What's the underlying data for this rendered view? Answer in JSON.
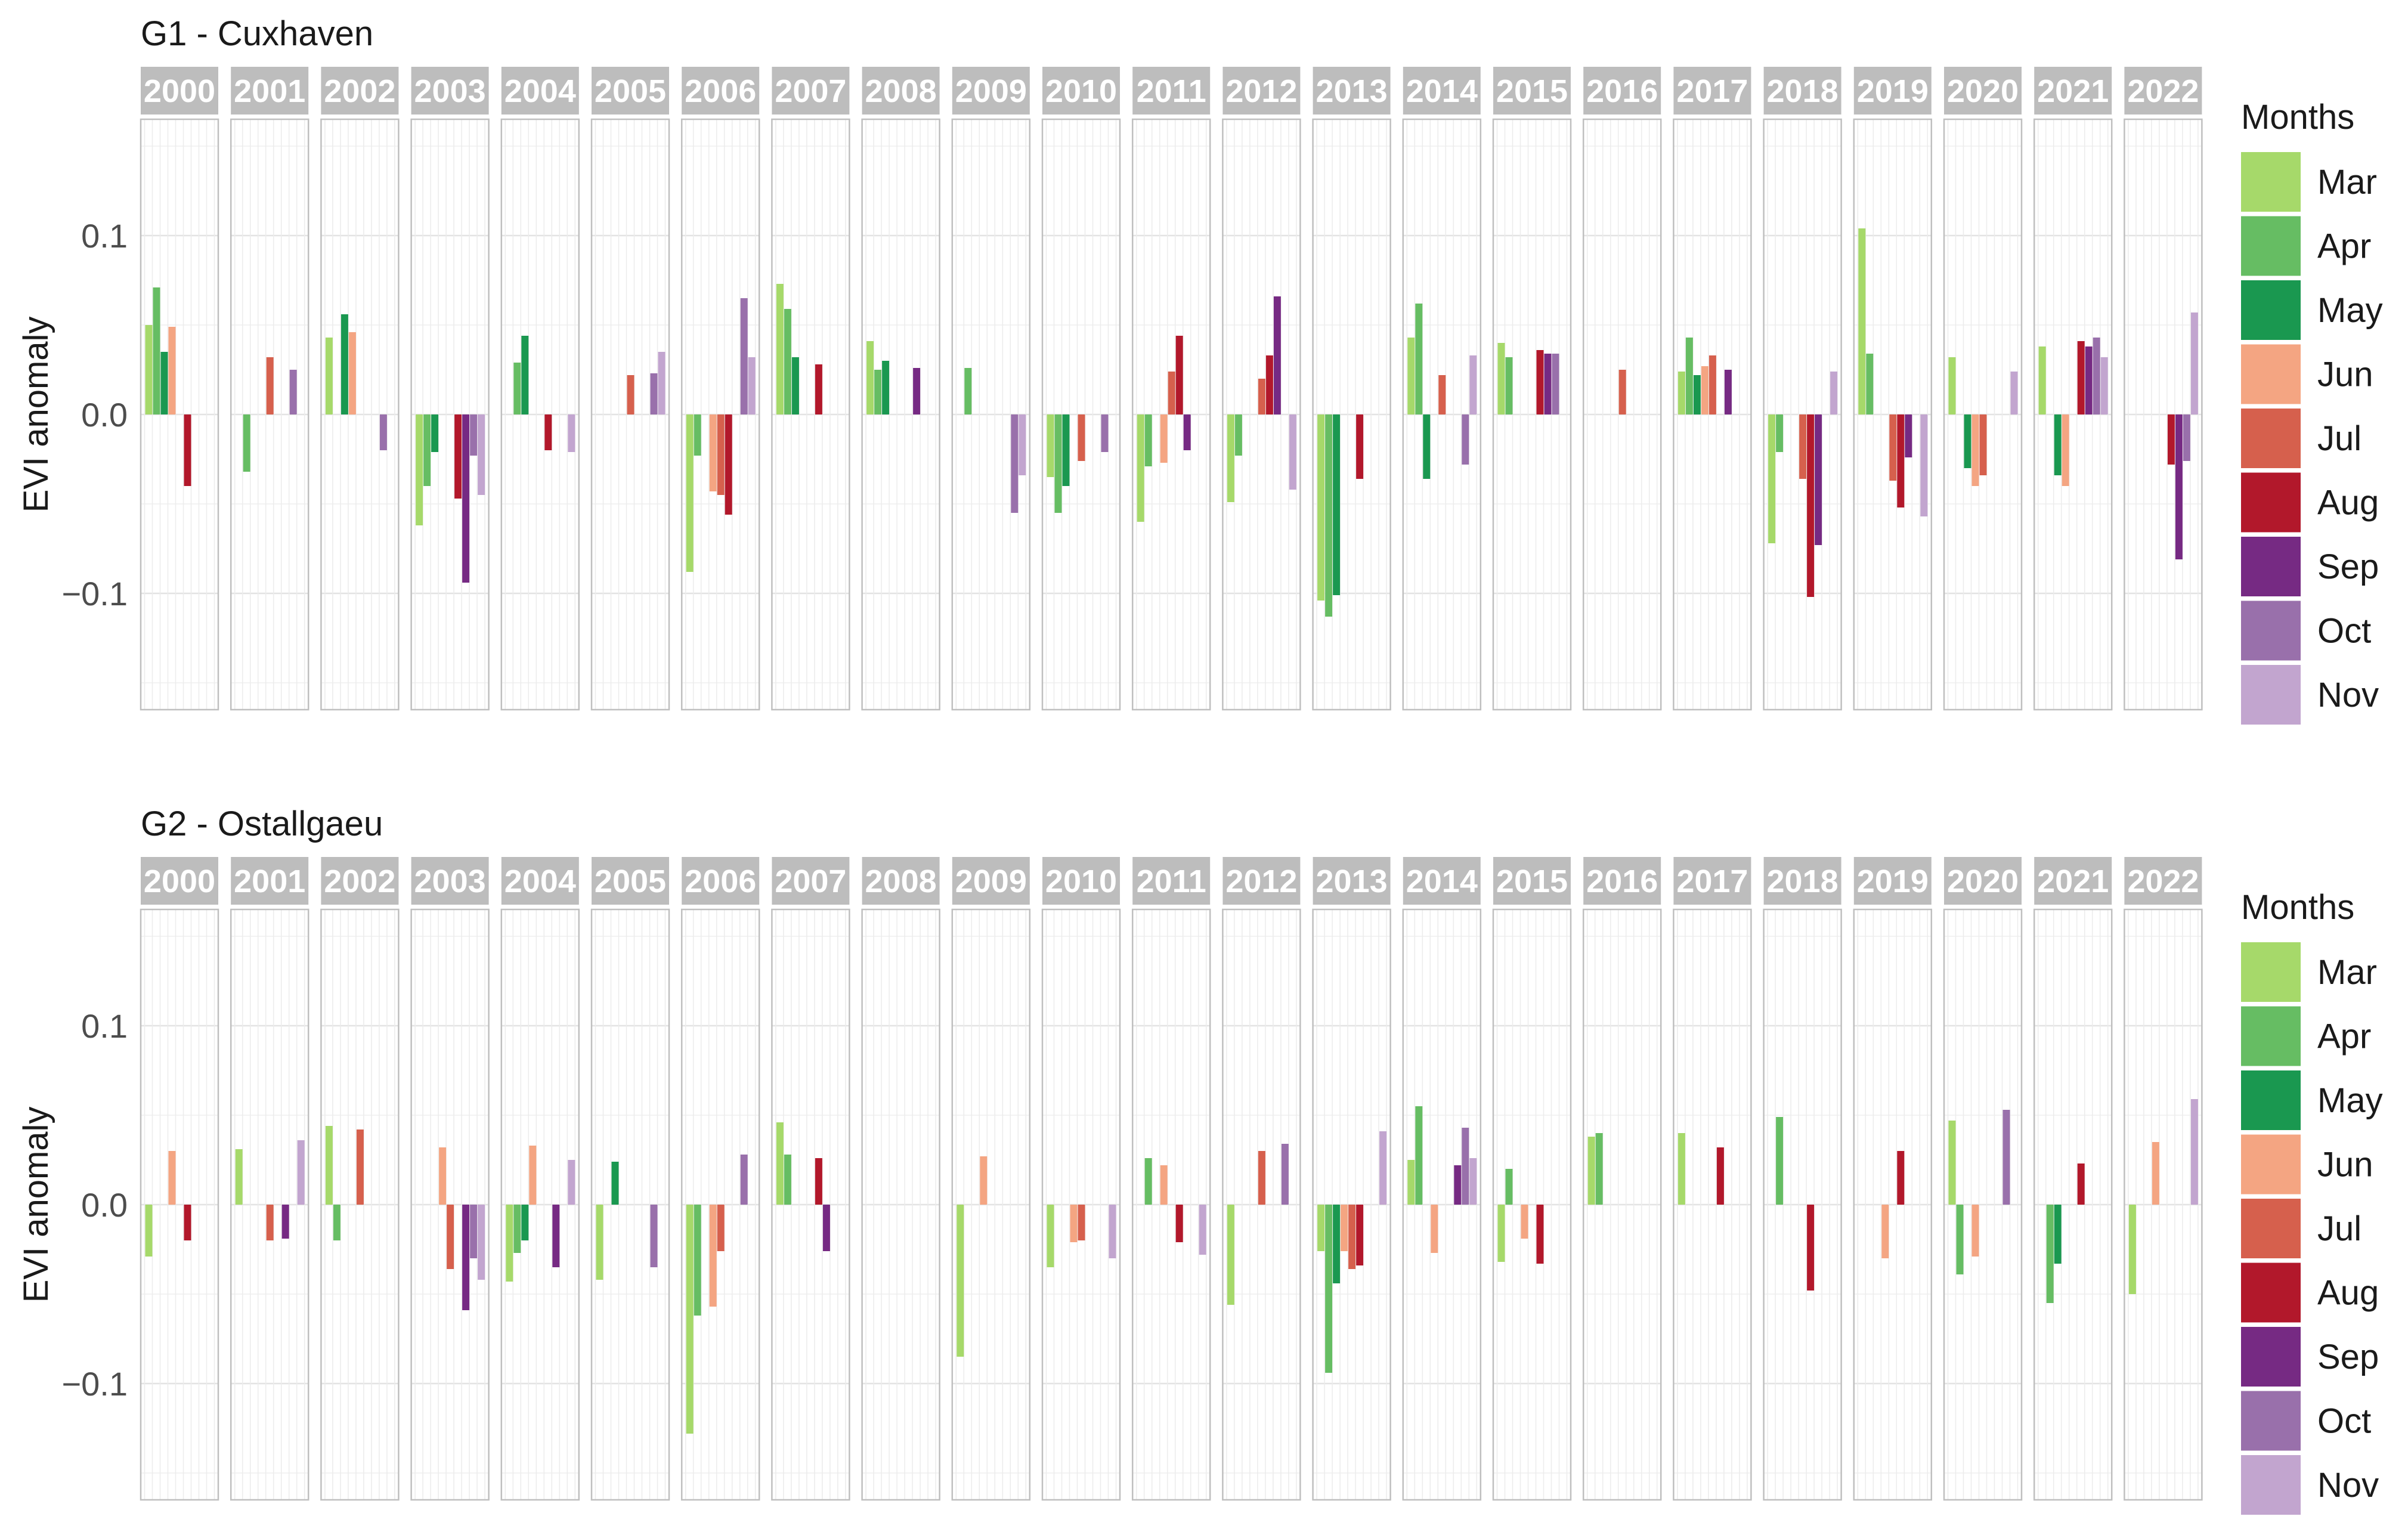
{
  "chart_data": [
    {
      "type": "bar",
      "title": "G1 - Cuxhaven",
      "xlabel": "",
      "ylabel": "EVI anomaly",
      "ylim": [
        -0.165,
        0.165
      ],
      "yticks": [
        0.1,
        0.0,
        -0.1
      ],
      "ytick_labels": [
        "0.1",
        "0.0",
        "−0.1"
      ],
      "grid": true,
      "legend": "right",
      "legend_title": "Months",
      "categories": [
        "2000",
        "2001",
        "2002",
        "2003",
        "2004",
        "2005",
        "2006",
        "2007",
        "2008",
        "2009",
        "2010",
        "2011",
        "2012",
        "2013",
        "2014",
        "2015",
        "2016",
        "2017",
        "2018",
        "2019",
        "2020",
        "2021",
        "2022"
      ],
      "series": [
        {
          "name": "Mar",
          "color": "#a6d96a",
          "values": [
            0.05,
            null,
            0.043,
            -0.062,
            null,
            null,
            -0.088,
            0.073,
            0.041,
            null,
            -0.035,
            -0.06,
            -0.049,
            -0.104,
            0.043,
            0.04,
            null,
            0.024,
            -0.072,
            0.104,
            0.032,
            0.038,
            null
          ]
        },
        {
          "name": "Apr",
          "color": "#66bd63",
          "values": [
            0.071,
            -0.032,
            null,
            -0.04,
            0.029,
            null,
            -0.023,
            0.059,
            0.025,
            0.026,
            -0.055,
            -0.029,
            -0.023,
            -0.113,
            0.062,
            0.032,
            null,
            0.043,
            -0.021,
            0.034,
            null,
            null,
            null
          ]
        },
        {
          "name": "May",
          "color": "#1a9850",
          "values": [
            0.035,
            null,
            0.056,
            -0.021,
            0.044,
            null,
            null,
            0.032,
            0.03,
            null,
            -0.04,
            null,
            null,
            -0.101,
            -0.036,
            null,
            null,
            0.022,
            null,
            null,
            -0.03,
            -0.034,
            null
          ]
        },
        {
          "name": "Jun",
          "color": "#f4a582",
          "values": [
            0.049,
            null,
            0.046,
            null,
            null,
            null,
            -0.043,
            null,
            null,
            null,
            null,
            -0.027,
            null,
            null,
            null,
            null,
            null,
            0.027,
            null,
            null,
            -0.04,
            -0.04,
            null
          ]
        },
        {
          "name": "Jul",
          "color": "#d6604d",
          "values": [
            null,
            0.032,
            null,
            null,
            null,
            0.022,
            -0.045,
            null,
            null,
            null,
            -0.026,
            0.024,
            0.02,
            null,
            0.022,
            null,
            0.025,
            0.033,
            -0.036,
            -0.037,
            -0.034,
            null,
            null
          ]
        },
        {
          "name": "Aug",
          "color": "#b2182b",
          "values": [
            -0.04,
            null,
            null,
            -0.047,
            -0.02,
            null,
            -0.056,
            0.028,
            null,
            null,
            null,
            0.044,
            0.033,
            -0.036,
            null,
            0.036,
            null,
            null,
            -0.102,
            -0.052,
            null,
            0.041,
            -0.028
          ]
        },
        {
          "name": "Sep",
          "color": "#762a83",
          "values": [
            null,
            null,
            null,
            -0.094,
            null,
            null,
            null,
            null,
            0.026,
            null,
            null,
            -0.02,
            0.066,
            null,
            null,
            0.034,
            null,
            0.025,
            -0.073,
            -0.024,
            null,
            0.038,
            -0.081
          ]
        },
        {
          "name": "Oct",
          "color": "#9970ab",
          "values": [
            null,
            0.025,
            -0.02,
            -0.023,
            null,
            0.023,
            0.065,
            null,
            null,
            -0.055,
            -0.021,
            null,
            null,
            null,
            -0.028,
            0.034,
            null,
            null,
            null,
            null,
            null,
            0.043,
            -0.026
          ]
        },
        {
          "name": "Nov",
          "color": "#c2a5cf",
          "values": [
            null,
            null,
            null,
            -0.045,
            -0.021,
            0.035,
            0.032,
            null,
            null,
            -0.034,
            null,
            null,
            -0.042,
            null,
            0.033,
            null,
            null,
            null,
            0.024,
            -0.057,
            0.024,
            0.032,
            0.057
          ]
        }
      ]
    },
    {
      "type": "bar",
      "title": "G2 - Ostallgaeu",
      "xlabel": "",
      "ylabel": "EVI anomaly",
      "ylim": [
        -0.165,
        0.165
      ],
      "yticks": [
        0.1,
        0.0,
        -0.1
      ],
      "ytick_labels": [
        "0.1",
        "0.0",
        "−0.1"
      ],
      "grid": true,
      "legend": "right",
      "legend_title": "Months",
      "categories": [
        "2000",
        "2001",
        "2002",
        "2003",
        "2004",
        "2005",
        "2006",
        "2007",
        "2008",
        "2009",
        "2010",
        "2011",
        "2012",
        "2013",
        "2014",
        "2015",
        "2016",
        "2017",
        "2018",
        "2019",
        "2020",
        "2021",
        "2022"
      ],
      "series": [
        {
          "name": "Mar",
          "color": "#a6d96a",
          "values": [
            -0.029,
            0.031,
            0.044,
            null,
            -0.043,
            -0.042,
            -0.128,
            0.046,
            null,
            -0.085,
            -0.035,
            null,
            -0.056,
            -0.026,
            0.025,
            -0.032,
            0.038,
            0.04,
            null,
            null,
            0.047,
            null,
            -0.05
          ]
        },
        {
          "name": "Apr",
          "color": "#66bd63",
          "values": [
            null,
            null,
            -0.02,
            null,
            -0.027,
            null,
            -0.062,
            0.028,
            null,
            null,
            null,
            0.026,
            null,
            -0.094,
            0.055,
            0.02,
            0.04,
            null,
            0.049,
            null,
            -0.039,
            -0.055,
            null
          ]
        },
        {
          "name": "May",
          "color": "#1a9850",
          "values": [
            null,
            null,
            null,
            null,
            -0.02,
            0.024,
            null,
            null,
            null,
            null,
            null,
            null,
            null,
            -0.044,
            null,
            null,
            null,
            null,
            null,
            null,
            null,
            -0.033,
            null
          ]
        },
        {
          "name": "Jun",
          "color": "#f4a582",
          "values": [
            0.03,
            null,
            null,
            0.032,
            0.033,
            null,
            -0.057,
            null,
            null,
            0.027,
            -0.021,
            0.022,
            null,
            -0.026,
            -0.027,
            -0.019,
            null,
            null,
            null,
            -0.03,
            -0.029,
            null,
            0.035
          ]
        },
        {
          "name": "Jul",
          "color": "#d6604d",
          "values": [
            null,
            -0.02,
            0.042,
            -0.036,
            null,
            null,
            -0.026,
            null,
            null,
            null,
            -0.02,
            null,
            0.03,
            -0.036,
            null,
            null,
            null,
            null,
            null,
            null,
            null,
            null,
            null
          ]
        },
        {
          "name": "Aug",
          "color": "#b2182b",
          "values": [
            -0.02,
            null,
            null,
            null,
            null,
            null,
            null,
            0.026,
            null,
            null,
            null,
            -0.021,
            null,
            -0.034,
            null,
            -0.033,
            null,
            0.032,
            -0.048,
            0.03,
            null,
            0.023,
            null
          ]
        },
        {
          "name": "Sep",
          "color": "#762a83",
          "values": [
            null,
            -0.019,
            null,
            -0.059,
            -0.035,
            null,
            null,
            -0.026,
            null,
            null,
            null,
            null,
            null,
            null,
            0.022,
            null,
            null,
            null,
            null,
            null,
            null,
            null,
            null
          ]
        },
        {
          "name": "Oct",
          "color": "#9970ab",
          "values": [
            null,
            null,
            null,
            -0.03,
            null,
            -0.035,
            0.028,
            null,
            null,
            null,
            null,
            null,
            0.034,
            null,
            0.043,
            null,
            null,
            null,
            null,
            null,
            0.053,
            null,
            null
          ]
        },
        {
          "name": "Nov",
          "color": "#c2a5cf",
          "values": [
            null,
            0.036,
            null,
            -0.042,
            0.025,
            null,
            null,
            null,
            null,
            null,
            -0.03,
            -0.028,
            null,
            0.041,
            0.026,
            null,
            null,
            null,
            null,
            null,
            null,
            null,
            0.059
          ]
        }
      ]
    }
  ]
}
